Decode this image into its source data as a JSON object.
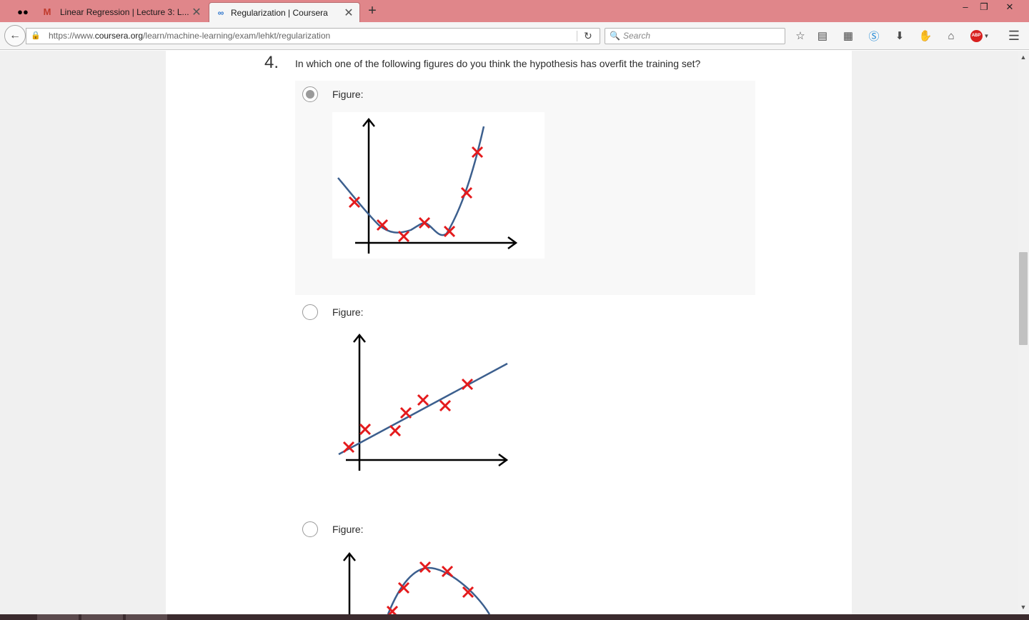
{
  "browser": {
    "tabs": [
      {
        "label": "Linear Regression | Lecture 3: L...",
        "icon": "gmail-icon",
        "active": false
      },
      {
        "label": "Regularization | Coursera",
        "icon": "coursera-icon",
        "active": true
      }
    ],
    "new_tab_symbol": "+",
    "url_prefix": "https://www.",
    "url_domain": "coursera.org",
    "url_path": "/learn/machine-learning/exam/lehkt/regularization",
    "search_placeholder": "Search",
    "window_controls": [
      "–",
      "❐",
      "✕"
    ],
    "toolbar_icons": [
      "bookmark-star-icon",
      "reading-list-icon",
      "pocket-icon",
      "skype-icon",
      "download-icon",
      "extension-icon",
      "home-icon",
      "adblock-icon",
      "menu-icon"
    ],
    "adblock_label": "ABP"
  },
  "question": {
    "number": "4.",
    "text": "In which one of the following figures do you think the hypothesis has overfit the training set?",
    "options": [
      {
        "label": "Figure:",
        "selected": true,
        "figure": "overfit-polynomial"
      },
      {
        "label": "Figure:",
        "selected": false,
        "figure": "linear-fit"
      },
      {
        "label": "Figure:",
        "selected": false,
        "figure": "quadratic-fit"
      }
    ]
  },
  "colors": {
    "titlebar": "#e0868a",
    "curve": "#3c5f8e",
    "marker": "#e41a1c",
    "axis": "#000000"
  }
}
